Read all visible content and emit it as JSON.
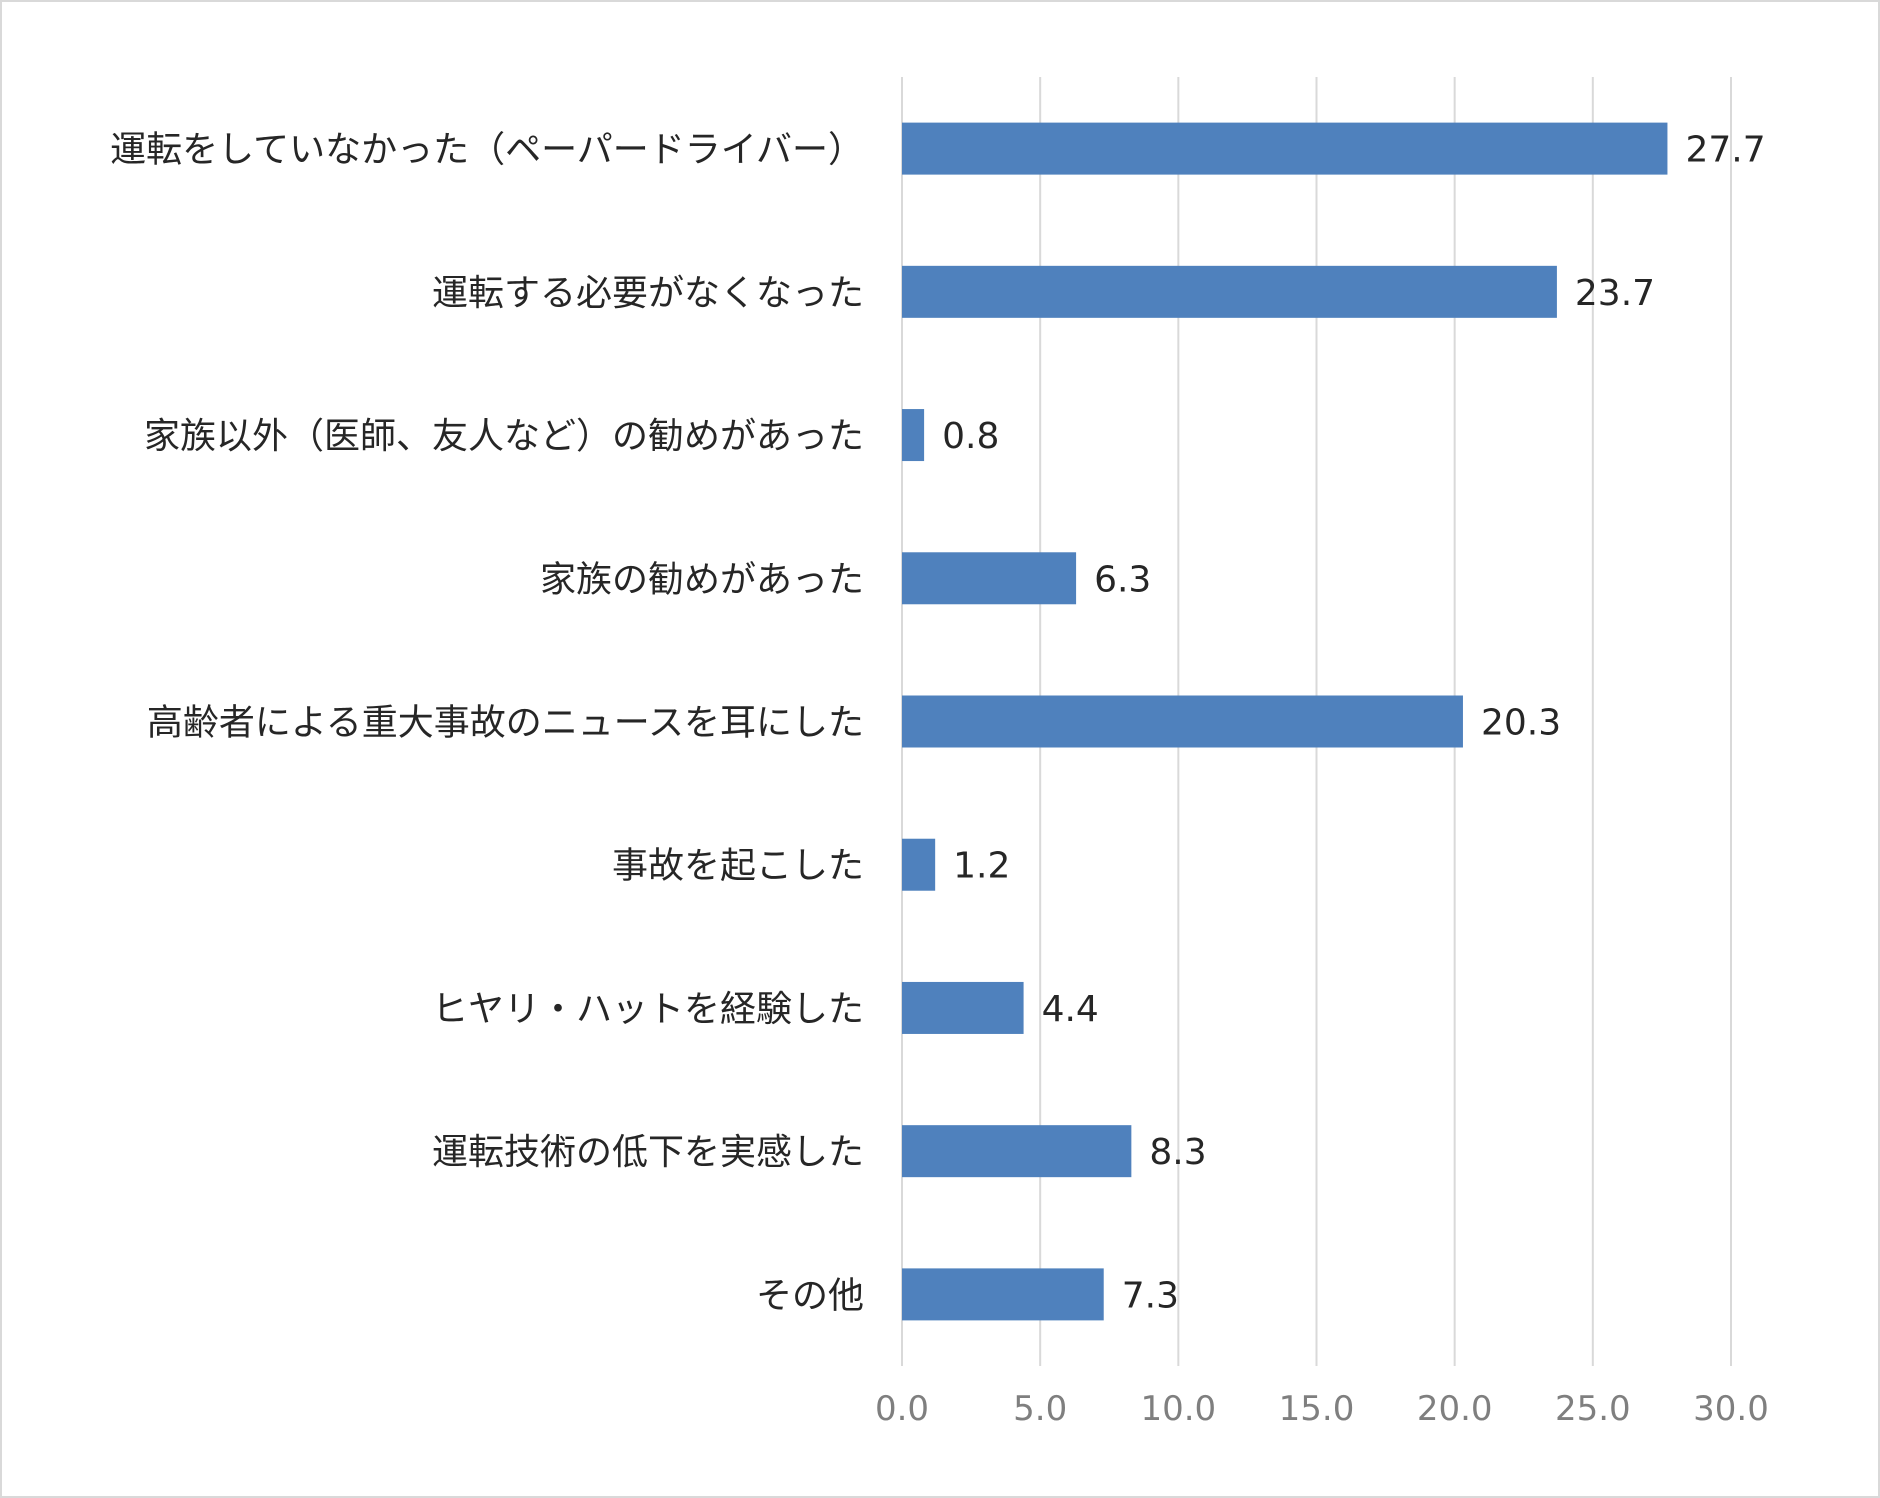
{
  "chart_data": {
    "type": "bar",
    "orientation": "horizontal",
    "categories": [
      "運転をしていなかった（ペーパードライバー）",
      "運転する必要がなくなった",
      "家族以外（医師、友人など）の勧めがあった",
      "家族の勧めがあった",
      "高齢者による重大事故のニュースを耳にした",
      "事故を起こした",
      "ヒヤリ・ハットを経験した",
      "運転技術の低下を実感した",
      "その他"
    ],
    "values": [
      27.7,
      23.7,
      0.8,
      6.3,
      20.3,
      1.2,
      4.4,
      8.3,
      7.3
    ],
    "value_labels": [
      "27.7",
      "23.7",
      "0.8",
      "6.3",
      "20.3",
      "1.2",
      "4.4",
      "8.3",
      "7.3"
    ],
    "xlim": [
      0,
      30
    ],
    "ticks": [
      0,
      5,
      10,
      15,
      20,
      25,
      30
    ],
    "tick_labels": [
      "0.0",
      "5.0",
      "10.0",
      "15.0",
      "20.0",
      "25.0",
      "30.0"
    ],
    "grid": true,
    "legend": "none",
    "bar_color": "#4f81bd",
    "grid_color": "#d9d9d9"
  }
}
